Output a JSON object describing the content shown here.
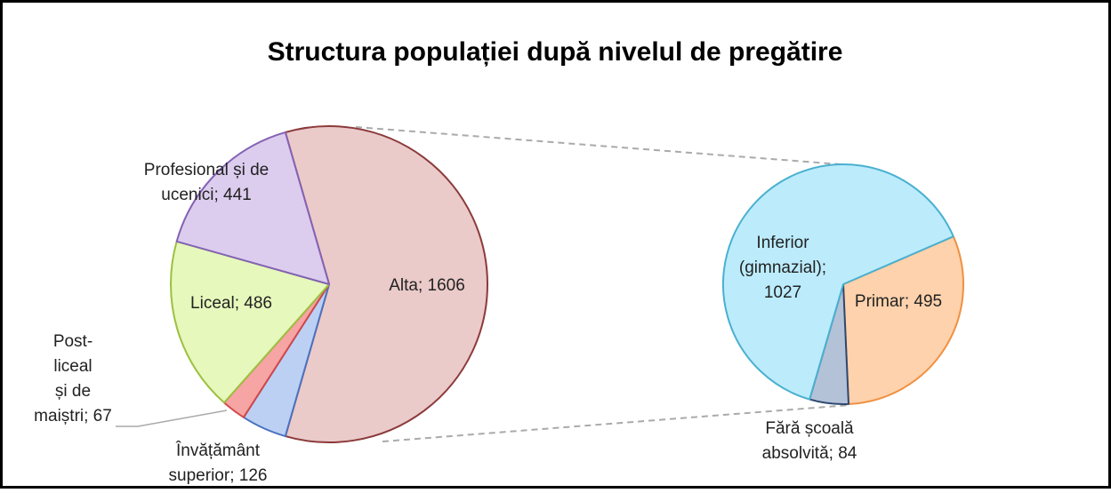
{
  "chart_data": {
    "type": "pie-of-pie",
    "title": "Structura populației după nivelul de pregătire",
    "pies": [
      {
        "labels": [
          [
            "Alta; 1606"
          ],
          [
            "Învățământ",
            "superior; 126"
          ],
          [
            "Post-",
            "liceal",
            "și de",
            "maiștri; 67"
          ],
          [
            "Liceal; 486"
          ],
          [
            "Profesional și de",
            "ucenici; 441"
          ]
        ],
        "values": [
          1606,
          126,
          67,
          486,
          441
        ],
        "colors": [
          "#ebcaca",
          "#bcd0f4",
          "#f6a4a4",
          "#e6f8bc",
          "#dccdee"
        ],
        "strokes": [
          "#8c3a3a",
          "#4a72c0",
          "#d04848",
          "#9cc040",
          "#8462b4"
        ]
      },
      {
        "labels": [
          [
            "Primar; 495"
          ],
          [
            "Fără școală",
            "absolvită; 84"
          ],
          [
            "Inferior",
            "(gimnazial);",
            "1027"
          ]
        ],
        "values": [
          495,
          84,
          1027
        ],
        "colors": [
          "#fdd2ac",
          "#b4c2d8",
          "#bcecfc"
        ],
        "strokes": [
          "#f09040",
          "#2e4870",
          "#4ab0d0"
        ]
      }
    ]
  }
}
